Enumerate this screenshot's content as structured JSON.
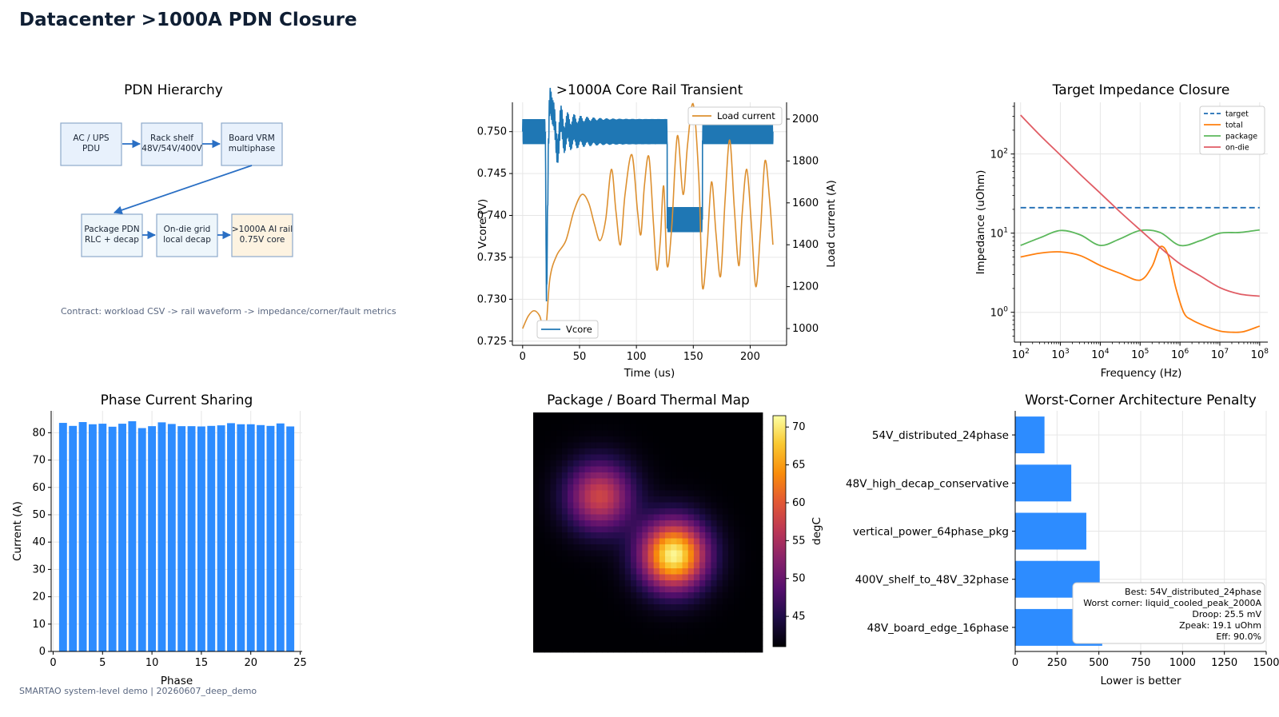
{
  "page": {
    "title": "Datacenter >1000A PDN Closure",
    "footer": "SMARTAO system-level demo | 20260607_deep_demo"
  },
  "chart_data": [
    {
      "id": "pdn-hierarchy",
      "type": "diagram",
      "title": "PDN Hierarchy",
      "nodes": [
        {
          "id": "ac",
          "lines": [
            "AC / UPS",
            "PDU"
          ],
          "fill": "#e8f1fc"
        },
        {
          "id": "rack",
          "lines": [
            "Rack shelf",
            "48V/54V/400V"
          ],
          "fill": "#e8f1fc"
        },
        {
          "id": "vrm",
          "lines": [
            "Board VRM",
            "multiphase"
          ],
          "fill": "#e8f1fc"
        },
        {
          "id": "pkg",
          "lines": [
            "Package PDN",
            "RLC + decap"
          ],
          "fill": "#eef6fb"
        },
        {
          "id": "die",
          "lines": [
            "On-die grid",
            "local decap"
          ],
          "fill": "#eef6fb"
        },
        {
          "id": "rail",
          "lines": [
            ">1000A AI rail",
            "0.75V core"
          ],
          "fill": "#fdf3e1"
        }
      ],
      "edges": [
        [
          "ac",
          "rack"
        ],
        [
          "rack",
          "vrm"
        ],
        [
          "vrm",
          "pkg"
        ],
        [
          "pkg",
          "die"
        ],
        [
          "die",
          "rail"
        ]
      ],
      "note": "Contract: workload CSV -> rail waveform -> impedance/corner/fault metrics"
    },
    {
      "id": "core-rail-transient",
      "type": "line",
      "title": ">1000A Core Rail Transient",
      "xlabel": "Time (us)",
      "ylabel": "Vcore (V)",
      "y2label": "Load current (A)",
      "xlim": [
        -9,
        232
      ],
      "ylim": [
        0.7245,
        0.7535
      ],
      "y2lim": [
        920,
        2080
      ],
      "xticks": [
        0,
        50,
        100,
        150,
        200
      ],
      "yticks": [
        0.725,
        0.73,
        0.735,
        0.74,
        0.745,
        0.75
      ],
      "y2ticks": [
        1000,
        1200,
        1400,
        1600,
        1800,
        2000
      ],
      "series": [
        {
          "name": "Vcore",
          "axis": "left",
          "color": "#1f77b4",
          "description_points": {
            "nominal": 0.75,
            "ripple": 0.0015,
            "dip_time": 20,
            "dip_min": 0.7275,
            "ring_decay_end": 60,
            "step_down_start": 127,
            "step_down_level": 0.7395,
            "step_down_end": 158,
            "end": 220
          }
        },
        {
          "name": "Load current",
          "axis": "right",
          "color": "#dd9030",
          "knots": [
            [
              0,
              1000
            ],
            [
              5,
              1060
            ],
            [
              10,
              1085
            ],
            [
              15,
              1060
            ],
            [
              20,
              985
            ],
            [
              24,
              1240
            ],
            [
              30,
              1350
            ],
            [
              38,
              1420
            ],
            [
              45,
              1560
            ],
            [
              52,
              1640
            ],
            [
              58,
              1600
            ],
            [
              63,
              1500
            ],
            [
              68,
              1420
            ],
            [
              73,
              1520
            ],
            [
              78,
              1760
            ],
            [
              82,
              1560
            ],
            [
              86,
              1400
            ],
            [
              90,
              1640
            ],
            [
              96,
              1830
            ],
            [
              101,
              1560
            ],
            [
              104,
              1450
            ],
            [
              107,
              1680
            ],
            [
              111,
              1820
            ],
            [
              115,
              1500
            ],
            [
              118,
              1280
            ],
            [
              121,
              1420
            ],
            [
              124,
              1680
            ],
            [
              127,
              1300
            ],
            [
              131,
              1480
            ],
            [
              136,
              1920
            ],
            [
              141,
              1640
            ],
            [
              145,
              1880
            ],
            [
              150,
              2070
            ],
            [
              155,
              1700
            ],
            [
              158,
              1200
            ],
            [
              162,
              1380
            ],
            [
              166,
              1700
            ],
            [
              170,
              1450
            ],
            [
              174,
              1250
            ],
            [
              178,
              1620
            ],
            [
              182,
              1900
            ],
            [
              186,
              1580
            ],
            [
              190,
              1300
            ],
            [
              193,
              1550
            ],
            [
              197,
              1760
            ],
            [
              201,
              1500
            ],
            [
              205,
              1200
            ],
            [
              209,
              1460
            ],
            [
              213,
              1800
            ],
            [
              217,
              1620
            ],
            [
              220,
              1400
            ]
          ]
        }
      ]
    },
    {
      "id": "target-impedance",
      "type": "line",
      "title": "Target Impedance Closure",
      "xlabel": "Frequency (Hz)",
      "ylabel": "Impedance (uOhm)",
      "xscale": "log",
      "yscale": "log",
      "xlim": [
        70,
        160000000.0
      ],
      "ylim": [
        0.42,
        450
      ],
      "xticks": [
        "10^2",
        "10^3",
        "10^4",
        "10^5",
        "10^6",
        "10^7",
        "10^8"
      ],
      "yticks": [
        "10^0",
        "10^1",
        "10^2"
      ],
      "legend": "top-right",
      "series": [
        {
          "name": "target",
          "color": "#1f6db4",
          "dashed": true,
          "x_log": [
            2,
            8
          ],
          "y": [
            21.0,
            21.0
          ]
        },
        {
          "name": "total",
          "color": "#ff7f0e",
          "x_log": [
            2,
            2.5,
            3,
            3.5,
            4,
            4.5,
            5,
            5.3,
            5.5,
            5.7,
            5.9,
            6.1,
            6.3,
            6.6,
            7,
            7.3,
            7.6,
            8
          ],
          "y": [
            5.0,
            5.6,
            5.8,
            5.2,
            3.9,
            3.1,
            2.55,
            3.8,
            6.7,
            5.3,
            2.0,
            0.98,
            0.8,
            0.68,
            0.58,
            0.56,
            0.57,
            0.67
          ]
        },
        {
          "name": "package",
          "color": "#5cb85c",
          "x_log": [
            2,
            2.5,
            3,
            3.5,
            4,
            4.5,
            5,
            5.5,
            6,
            6.5,
            7,
            7.5,
            8
          ],
          "y": [
            7.0,
            8.8,
            10.8,
            9.5,
            7.0,
            8.5,
            10.8,
            10.2,
            7.0,
            8.0,
            10.0,
            10.2,
            11.0
          ]
        },
        {
          "name": "on-die",
          "color": "#e05c64",
          "x_log": [
            2,
            2.5,
            3,
            3.5,
            4,
            4.5,
            5,
            5.5,
            6,
            6.5,
            7,
            7.5,
            8
          ],
          "y": [
            310,
            170,
            97,
            55,
            32,
            18.5,
            11,
            6.6,
            4.1,
            2.9,
            2.05,
            1.7,
            1.6
          ]
        }
      ]
    },
    {
      "id": "phase-current-sharing",
      "type": "bar",
      "title": "Phase Current Sharing",
      "xlabel": "Phase",
      "ylabel": "Current (A)",
      "xlim": [
        -0.2,
        25.2
      ],
      "ylim": [
        0,
        88
      ],
      "xticks": [
        0,
        5,
        10,
        15,
        20,
        25
      ],
      "yticks": [
        0,
        10,
        20,
        30,
        40,
        50,
        60,
        70,
        80
      ],
      "color": "#2d8cff",
      "categories": [
        1,
        2,
        3,
        4,
        5,
        6,
        7,
        8,
        9,
        10,
        11,
        12,
        13,
        14,
        15,
        16,
        17,
        18,
        19,
        20,
        21,
        22,
        23,
        24
      ],
      "values": [
        83.6,
        82.5,
        83.9,
        83.1,
        83.3,
        82.2,
        83.3,
        84.2,
        81.7,
        82.4,
        83.8,
        83.2,
        82.4,
        82.4,
        82.3,
        82.5,
        82.7,
        83.5,
        83.1,
        83.1,
        82.8,
        82.5,
        83.4,
        82.3
      ]
    },
    {
      "id": "thermal-map",
      "type": "heatmap",
      "title": "Package / Board Thermal Map",
      "colorbar_label": "degC",
      "vmin": 41,
      "vmax": 71.5,
      "cticks": [
        45,
        50,
        55,
        60,
        65,
        70
      ],
      "grid": [
        40,
        40
      ],
      "background": 41,
      "hotspots": [
        {
          "cx": 11.6,
          "cy": 14,
          "sigma": 4.0,
          "peak": 58
        },
        {
          "cx": 24.5,
          "cy": 23.8,
          "sigma": 4.0,
          "peak": 71
        }
      ]
    },
    {
      "id": "worst-corner-penalty",
      "type": "bar",
      "orientation": "horizontal",
      "title": "Worst-Corner Architecture Penalty",
      "xlabel": "Lower is better",
      "xlim": [
        0,
        1500
      ],
      "xticks": [
        0,
        250,
        500,
        750,
        1000,
        1250,
        1500
      ],
      "color": "#2d8cff",
      "categories": [
        "54V_distributed_24phase",
        "48V_high_decap_conservative",
        "vertical_power_64phase_pkg",
        "400V_shelf_to_48V_32phase",
        "48V_board_edge_16phase"
      ],
      "values": [
        175,
        335,
        425,
        505,
        520
      ],
      "annotation": [
        "Best: 54V_distributed_24phase",
        "Worst corner: liquid_cooled_peak_2000A",
        "Droop: 25.5 mV",
        "Zpeak: 19.1 uOhm",
        "Eff: 90.0%"
      ]
    }
  ]
}
